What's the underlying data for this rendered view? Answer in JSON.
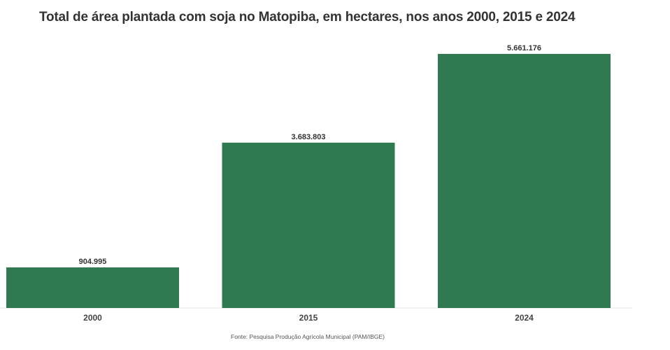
{
  "chart_data": {
    "type": "bar",
    "title": "Total de área plantada com soja no Matopiba, em hectares, nos anos 2000, 2015 e 2024",
    "categories": [
      "2000",
      "2015",
      "2024"
    ],
    "values": [
      904995,
      3683803,
      5661176
    ],
    "value_labels": [
      "904.995",
      "3.683.803",
      "5.661.176"
    ],
    "ylim": [
      0,
      5661176
    ],
    "grid": false,
    "legend": "none",
    "bar_color": "#2f7a50",
    "source": "Fonte: Pesquisa Produção Agrícola Municipal (PAM/IBGE)"
  }
}
